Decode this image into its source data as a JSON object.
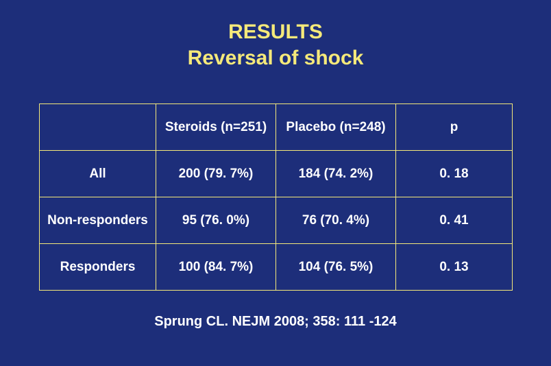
{
  "title_line1": "RESULTS",
  "title_line2": "Reversal of shock",
  "table": {
    "columns": [
      "",
      "Steroids (n=251)",
      "Placebo (n=248)",
      "p"
    ],
    "rows": [
      [
        "All",
        "200 (79. 7%)",
        "184 (74. 2%)",
        "0. 18"
      ],
      [
        "Non-responders",
        "95 (76. 0%)",
        "76 (70. 4%)",
        "0. 41"
      ],
      [
        "Responders",
        "100 (84. 7%)",
        "104 (76. 5%)",
        "0. 13"
      ]
    ],
    "border_color": "#f5e97a",
    "text_color": "#ffffff",
    "cell_fontsize": 19,
    "cell_fontweight": "bold"
  },
  "citation": "Sprung CL.  NEJM 2008; 358: 111 -124",
  "colors": {
    "background": "#1d2e7a",
    "title": "#f5e97a",
    "text": "#ffffff"
  }
}
